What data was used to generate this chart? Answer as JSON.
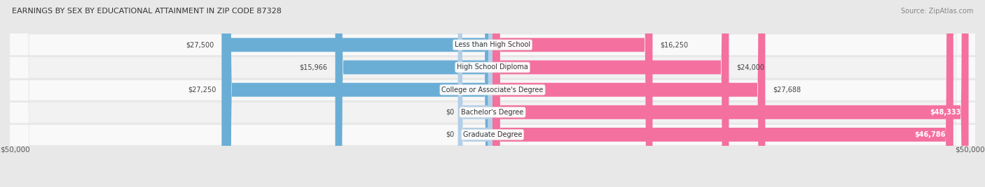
{
  "title": "EARNINGS BY SEX BY EDUCATIONAL ATTAINMENT IN ZIP CODE 87328",
  "source": "Source: ZipAtlas.com",
  "categories": [
    "Less than High School",
    "High School Diploma",
    "College or Associate's Degree",
    "Bachelor's Degree",
    "Graduate Degree"
  ],
  "male_values": [
    27500,
    15966,
    27250,
    0,
    0
  ],
  "female_values": [
    16250,
    24000,
    27688,
    48333,
    46786
  ],
  "male_labels": [
    "$27,500",
    "$15,966",
    "$27,250",
    "$0",
    "$0"
  ],
  "female_labels": [
    "$16,250",
    "$24,000",
    "$27,688",
    "$48,333",
    "$46,786"
  ],
  "male_color": "#6aaed6",
  "male_color_light": "#b3cfe8",
  "female_color": "#f4709f",
  "female_color_light": "#f4a8c4",
  "row_color_odd": "#f7f7f7",
  "row_color_even": "#efefef",
  "bg_color": "#e8e8e8",
  "max_value": 50000,
  "bar_height": 0.62,
  "xlabel_left": "$50,000",
  "xlabel_right": "$50,000"
}
